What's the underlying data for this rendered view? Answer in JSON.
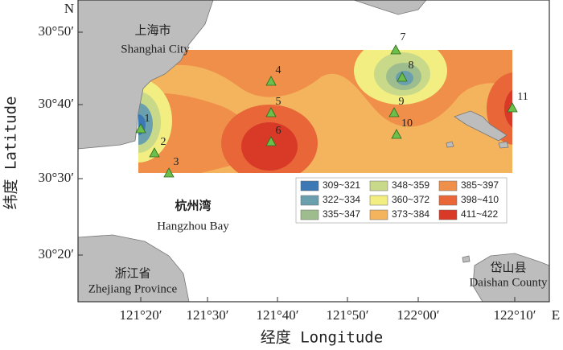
{
  "axes": {
    "x_label": "经度 Longitude",
    "y_label": "纬度 Latitude",
    "north": "N",
    "east": "E",
    "x_ticks": [
      "121°20′",
      "121°30′",
      "121°40′",
      "121°50′",
      "122°00′",
      "122°10′"
    ],
    "y_ticks": [
      "30°50′",
      "30°40′",
      "30°30′",
      "30°20′"
    ]
  },
  "places": [
    {
      "zh": "上海市",
      "en": "Shanghai City"
    },
    {
      "zh": "杭州湾",
      "en": "Hangzhou Bay"
    },
    {
      "zh": "浙江省",
      "en": "Zhejiang Province"
    },
    {
      "zh": "岱山县",
      "en": "Daishan County"
    }
  ],
  "stations": [
    "1",
    "2",
    "3",
    "4",
    "5",
    "6",
    "7",
    "8",
    "9",
    "10",
    "11"
  ],
  "legend": [
    {
      "label": "309~321",
      "color": "#3b78b4"
    },
    {
      "label": "322~334",
      "color": "#6a9fae"
    },
    {
      "label": "335~347",
      "color": "#9ebd8e"
    },
    {
      "label": "348~359",
      "color": "#c9d98a"
    },
    {
      "label": "360~372",
      "color": "#f2ee82"
    },
    {
      "label": "373~384",
      "color": "#f4b45e"
    },
    {
      "label": "385~397",
      "color": "#ef8f4a"
    },
    {
      "label": "398~410",
      "color": "#e86637"
    },
    {
      "label": "411~422",
      "color": "#d93a28"
    }
  ]
}
